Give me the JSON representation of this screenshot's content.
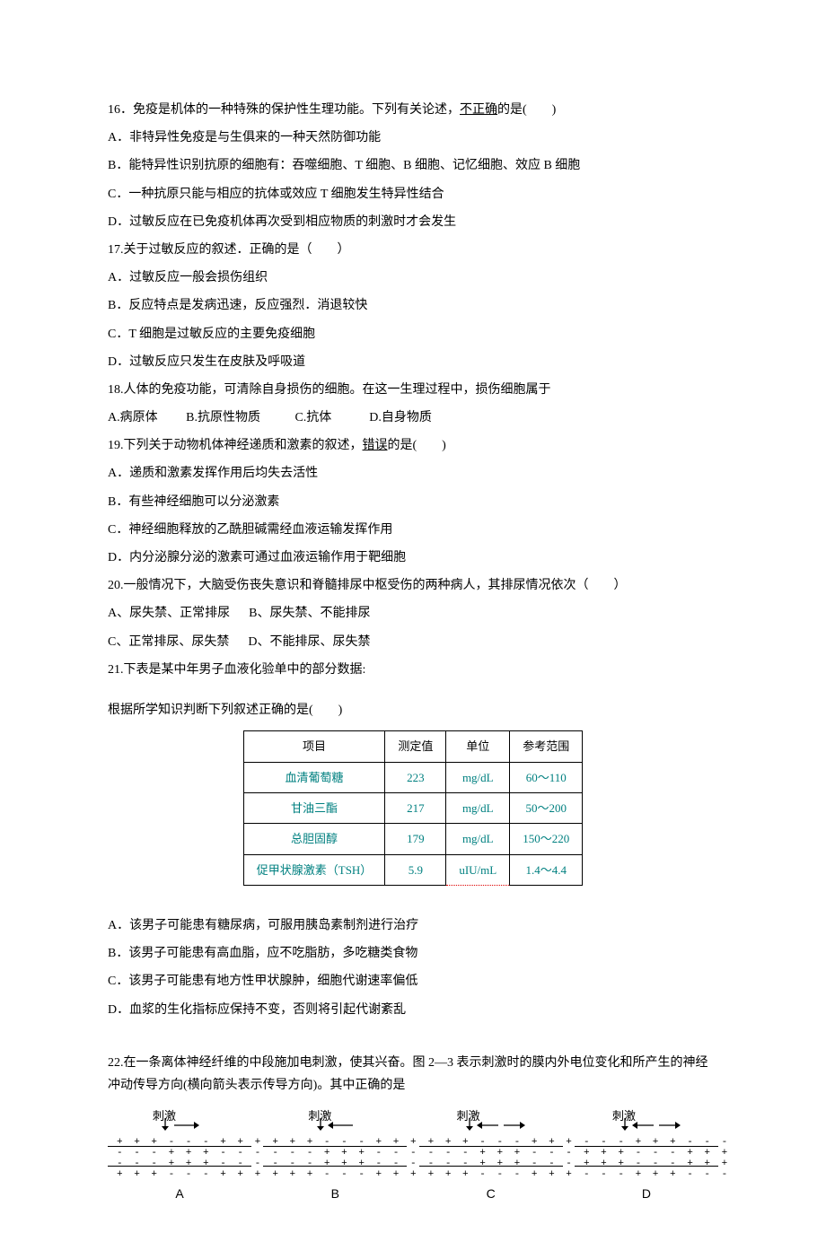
{
  "q16": {
    "num": "16．",
    "stem_a": "免疫是机体的一种特殊的保护性生理功能。下列有关论述，",
    "stem_u": "不正确",
    "stem_b": "的是(　　)",
    "A": "A．非特异性免疫是与生俱来的一种天然防御功能",
    "B": "B．能特异性识别抗原的细胞有：吞噬细胞、T 细胞、B 细胞、记忆细胞、效应 B 细胞",
    "C": "C．一种抗原只能与相应的抗体或效应 T 细胞发生特异性结合",
    "D": "D．过敏反应在已免疫机体再次受到相应物质的刺激时才会发生"
  },
  "q17": {
    "num": "17.",
    "stem": "关于过敏反应的叙述．正确的是（　　）",
    "A": "A．过敏反应一般会损伤组织",
    "B": "B．反应特点是发病迅速，反应强烈．消退较快",
    "C": "C．T 细胞是过敏反应的主要免疫细胞",
    "D": "D．过敏反应只发生在皮肤及呼吸道"
  },
  "q18": {
    "num": "18.",
    "stem": "人体的免疫功能，可清除自身损伤的细胞。在这一生理过程中，损伤细胞属于",
    "opts": "A.病原体         B.抗原性物质           C.抗体            D.自身物质"
  },
  "q19": {
    "num": "19.",
    "stem_a": "下列关于动物机体神经递质和激素的叙述，",
    "stem_u": "错误",
    "stem_b": "的是(　　)",
    "A": "A．递质和激素发挥作用后均失去活性",
    "B": "B．有些神经细胞可以分泌激素",
    "C": "C．神经细胞释放的乙酰胆碱需经血液运输发挥作用",
    "D": "D．内分泌腺分泌的激素可通过血液运输作用于靶细胞"
  },
  "q20": {
    "num": "20.",
    "stem": "一般情况下，大脑受伤丧失意识和脊髓排尿中枢受伤的两种病人，其排尿情况依次（　　）",
    "line1": "A、尿失禁、正常排尿      B、尿失禁、不能排尿",
    "line2": "C、正常排尿、尿失禁      D、不能排尿、尿失禁"
  },
  "q21": {
    "num": "21.",
    "stem": "下表是某中年男子血液化验单中的部分数据:",
    "sub": "根据所学知识判断下列叙述正确的是(　　)",
    "table": {
      "head": [
        "项目",
        "测定值",
        "单位",
        "参考范围"
      ],
      "rows": [
        [
          "血清葡萄糖",
          "223",
          "mg/dL",
          "60～110"
        ],
        [
          "甘油三酯",
          "217",
          "mg/dL",
          "50～200"
        ],
        [
          "总胆固醇",
          "179",
          "mg/dL",
          "150～220"
        ],
        [
          "促甲状腺激素（TSH）",
          "5.9",
          "uIU/mL",
          "1.4～4.4"
        ]
      ],
      "border_color": "#000000",
      "text_color": "#008080",
      "header_color": "#000000"
    },
    "A": "A．该男子可能患有糖尿病，可服用胰岛素制剂进行治疗",
    "B": "B．该男子可能患有高血脂，应不吃脂肪，多吃糖类食物",
    "C": "C．该男子可能患有地方性甲状腺肿，细胞代谢速率偏低",
    "D": "D．血浆的生化指标应保持不变，否则将引起代谢紊乱"
  },
  "q22": {
    "num": "22.",
    "stem": "在一条离体神经纤维的中段施加电刺激，使其兴奋。图 2—3 表示刺激时的膜内外电位变化和所产生的神经冲动传导方向(横向箭头表示传导方向)。其中正确的是",
    "diagrams": [
      {
        "id": "A",
        "stim_label": "刺激",
        "arrows": "right",
        "outer": "+ + + - - - + + +",
        "inner": "- - - + + + - - -"
      },
      {
        "id": "B",
        "stim_label": "刺激",
        "arrows": "left",
        "outer": "+ + + - - - + + +",
        "inner": "- - - + + + - - -"
      },
      {
        "id": "C",
        "stim_label": "刺激",
        "arrows": "both",
        "outer": "+ + + - - - + + +",
        "inner": "- - - + + + - - -"
      },
      {
        "id": "D",
        "stim_label": "刺激",
        "arrows": "both",
        "outer": "- - - + + + - - -",
        "inner": "+ + + - - - + + +"
      }
    ]
  }
}
